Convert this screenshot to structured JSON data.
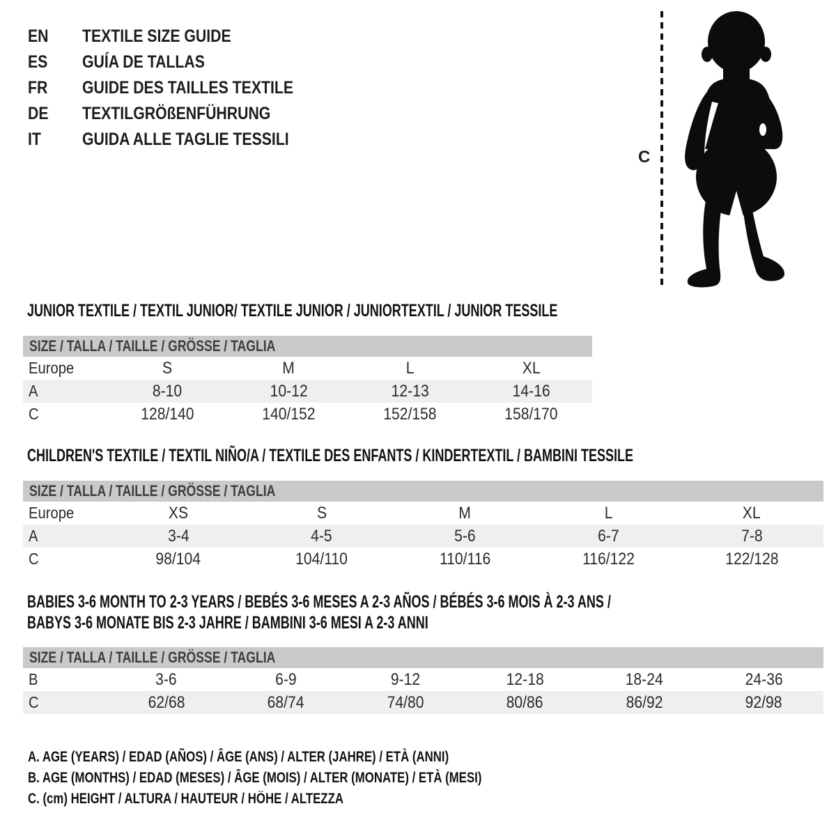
{
  "colors": {
    "background": "#ffffff",
    "table_header_bg": "#c9c9c9",
    "row_shaded_bg": "#efefef",
    "heading_text": "#111111",
    "table_text": "#2a2a2a",
    "silhouette": "#0c0c0c"
  },
  "language_guide": {
    "items": [
      {
        "code": "EN",
        "label": "TEXTILE SIZE GUIDE"
      },
      {
        "code": "ES",
        "label": "GUÍA DE TALLAS"
      },
      {
        "code": "FR",
        "label": "GUIDE DES TAILLES TEXTILE"
      },
      {
        "code": "DE",
        "label": "TEXTILGRÖßENFÜHRUNG"
      },
      {
        "code": "IT",
        "label": "GUIDA ALLE TAGLIE TESSILI"
      }
    ]
  },
  "figure": {
    "image_name": "toddler-silhouette",
    "measure_label": "C"
  },
  "sections": [
    {
      "id": "junior",
      "title": "JUNIOR TEXTILE / TEXTIL JUNIOR/ TEXTILE JUNIOR / JUNIORTEXTIL / JUNIOR TESSILE",
      "title_line2": "",
      "size_header": "SIZE / TALLA / TAILLE / GRÖSSE / TAGLIA",
      "rows": [
        {
          "label": "Europe",
          "values": [
            "S",
            "M",
            "L",
            "XL"
          ],
          "shaded": false
        },
        {
          "label": "A",
          "values": [
            "8-10",
            "10-12",
            "12-13",
            "14-16"
          ],
          "shaded": true
        },
        {
          "label": "C",
          "values": [
            "128/140",
            "140/152",
            "152/158",
            "158/170"
          ],
          "shaded": false
        }
      ]
    },
    {
      "id": "children",
      "title": "CHILDREN'S TEXTILE / TEXTIL NIÑO/A / TEXTILE DES ENFANTS / KINDERTEXTIL / BAMBINI TESSILE",
      "title_line2": "",
      "size_header": "SIZE / TALLA / TAILLE / GRÖSSE / TAGLIA",
      "rows": [
        {
          "label": "Europe",
          "values": [
            "XS",
            "S",
            "M",
            "L",
            "XL"
          ],
          "shaded": false
        },
        {
          "label": "A",
          "values": [
            "3-4",
            "4-5",
            "5-6",
            "6-7",
            "7-8"
          ],
          "shaded": true
        },
        {
          "label": "C",
          "values": [
            "98/104",
            "104/110",
            "110/116",
            "116/122",
            "122/128"
          ],
          "shaded": false
        }
      ]
    },
    {
      "id": "babies",
      "title": "BABIES 3-6 MONTH TO 2-3 YEARS / BEBÉS 3-6 MESES A 2-3 AÑOS / BÉBÉS 3-6 MOIS À 2-3 ANS /",
      "title_line2": "BABYS 3-6 MONATE BIS 2-3 JAHRE / BAMBINI 3-6 MESI A 2-3 ANNI",
      "size_header": "SIZE / TALLA / TAILLE / GRÖSSE / TAGLIA",
      "rows": [
        {
          "label": "B",
          "values": [
            "3-6",
            "6-9",
            "9-12",
            "12-18",
            "18-24",
            "24-36"
          ],
          "shaded": false
        },
        {
          "label": "C",
          "values": [
            "62/68",
            "68/74",
            "74/80",
            "80/86",
            "86/92",
            "92/98"
          ],
          "shaded": true
        }
      ]
    }
  ],
  "notes": {
    "lines": [
      "A. AGE (YEARS) / EDAD (AÑOS) / ÂGE (ANS) / ALTER (JAHRE) / ETÀ (ANNI)",
      "B. AGE (MONTHS) / EDAD (MESES) / ÂGE (MOIS) / ALTER (MONATE) / ETÀ (MESI)",
      "C. (cm) HEIGHT / ALTURA / HAUTEUR / HÖHE / ALTEZZA"
    ]
  }
}
